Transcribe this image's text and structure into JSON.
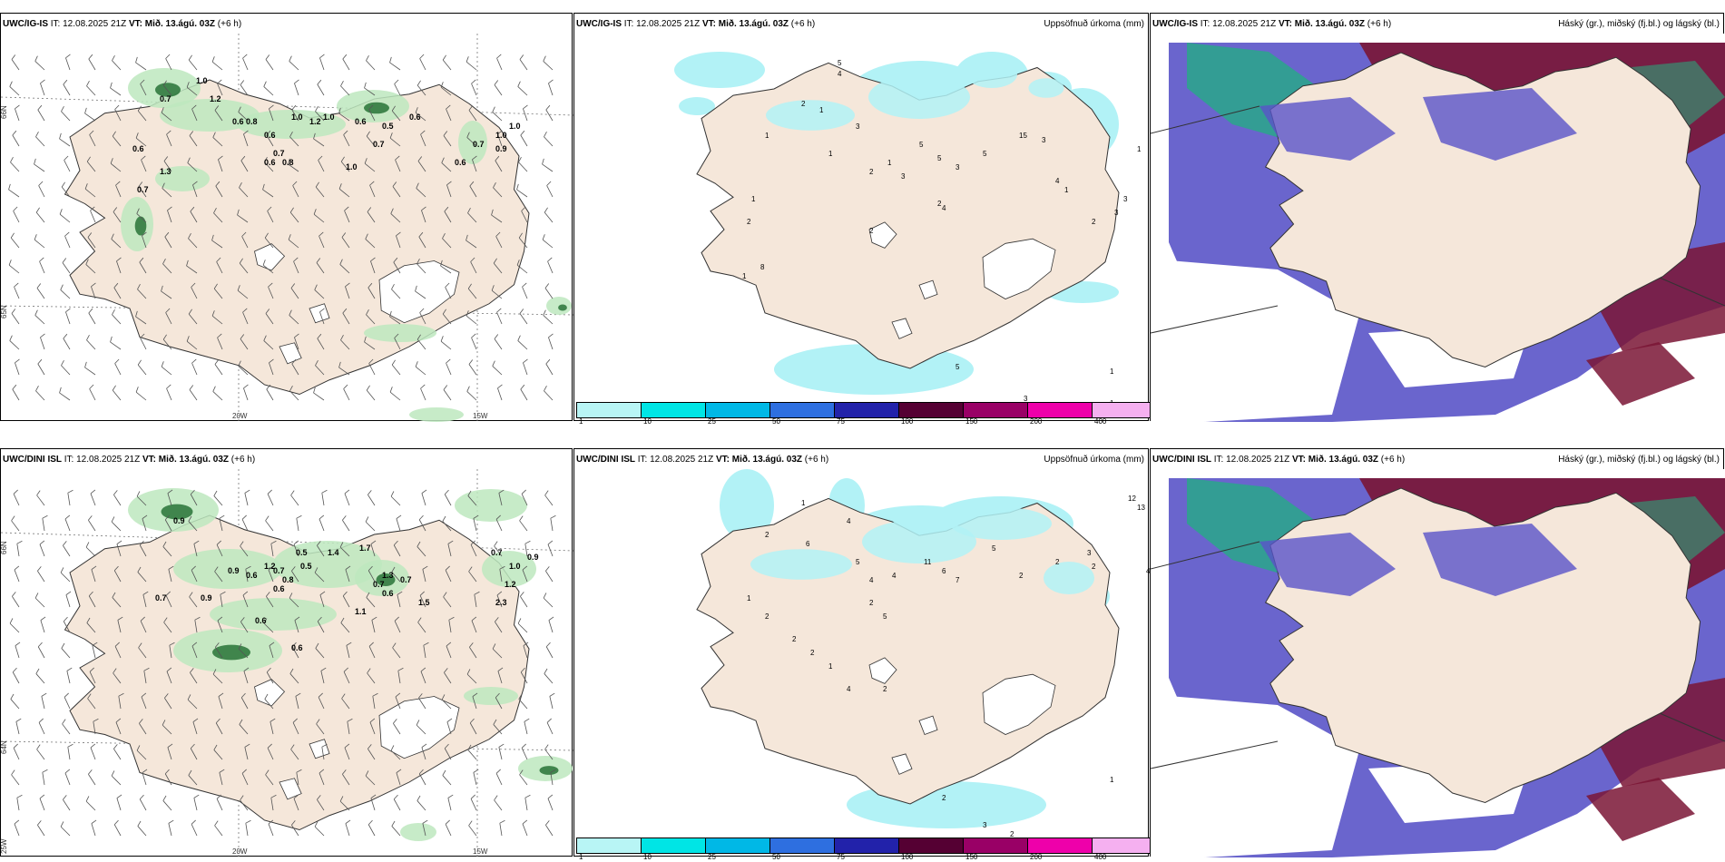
{
  "rows": [
    {
      "wind": {
        "model": "UWC/IG-IS",
        "it": "IT: 12.08.2025 21Z",
        "vt": "VT: Mið. 13.ágú. 03Z",
        "lead": "(+6 h)",
        "values": [
          {
            "t": "0.7"
          },
          {
            "t": "1.0"
          },
          {
            "t": "1.2"
          },
          {
            "t": "0.6"
          },
          {
            "t": "0.8"
          },
          {
            "t": "0.6"
          },
          {
            "t": "0.7"
          },
          {
            "t": "0.8"
          },
          {
            "t": "0.6"
          },
          {
            "t": "1.0"
          },
          {
            "t": "1.2"
          },
          {
            "t": "1.0"
          },
          {
            "t": "0.6"
          },
          {
            "t": "0.7"
          },
          {
            "t": "0.5"
          },
          {
            "t": "0.6"
          },
          {
            "t": "1.0"
          },
          {
            "t": "0.6"
          },
          {
            "t": "0.7"
          },
          {
            "t": "1.0"
          },
          {
            "t": "1.0"
          },
          {
            "t": "0.9"
          },
          {
            "t": "0.6"
          },
          {
            "t": "1.3"
          },
          {
            "t": "0.7"
          }
        ]
      },
      "precip": {
        "model": "UWC/IG-IS",
        "it": "IT: 12.08.2025 21Z",
        "vt": "VT: Mið. 13.ágú. 03Z",
        "lead": "(+6 h)",
        "label": "Uppsöfnuð úrkoma (mm)",
        "values": [
          "5",
          "4",
          "2",
          "1",
          "3",
          "1",
          "2",
          "1",
          "3",
          "5",
          "5",
          "3",
          "5",
          "15",
          "3",
          "4",
          "1",
          "2",
          "3",
          "3",
          "1",
          "1",
          "2",
          "1",
          "2",
          "1",
          "1",
          "2",
          "8",
          "1",
          "2",
          "2",
          "4",
          "5",
          "3",
          "1",
          "1",
          "2",
          "1"
        ]
      },
      "cloud": {
        "model": "UWC/IG-IS",
        "it": "IT: 12.08.2025 21Z",
        "vt": "VT: Mið. 13.ágú. 03Z",
        "lead": "(+6 h)",
        "label": "Háský (gr.), miðský (fj.bl.) og lágský (bl.)"
      }
    },
    {
      "wind": {
        "model": "UWC/DINI ISL",
        "it": "IT: 12.08.2025 21Z",
        "vt": "VT: Mið. 13.ágú. 03Z",
        "lead": "(+6 h)",
        "values": [
          {
            "t": "0.9"
          },
          {
            "t": "0.7"
          },
          {
            "t": "0.9"
          },
          {
            "t": "0.9"
          },
          {
            "t": "0.6"
          },
          {
            "t": "1.2"
          },
          {
            "t": "0.7"
          },
          {
            "t": "0.8"
          },
          {
            "t": "0.6"
          },
          {
            "t": "0.5"
          },
          {
            "t": "0.6"
          },
          {
            "t": "0.5"
          },
          {
            "t": "1.4"
          },
          {
            "t": "1.7"
          },
          {
            "t": "0.7"
          },
          {
            "t": "1.3"
          },
          {
            "t": "0.6"
          },
          {
            "t": "1.5"
          },
          {
            "t": "0.7"
          },
          {
            "t": "0.7"
          },
          {
            "t": "1.0"
          },
          {
            "t": "0.9"
          },
          {
            "t": "2.3"
          },
          {
            "t": "1.2"
          },
          {
            "t": "0.6"
          },
          {
            "t": "1.1"
          }
        ]
      },
      "precip": {
        "model": "UWC/DINI ISL",
        "it": "IT: 12.08.2025 21Z",
        "vt": "VT: Mið. 13.ágú. 03Z",
        "lead": "(+6 h)",
        "label": "Uppsöfnuð úrkoma (mm)",
        "values": [
          "1",
          "4",
          "12",
          "13",
          "2",
          "7",
          "2",
          "6",
          "5",
          "4",
          "4",
          "11",
          "6",
          "7",
          "5",
          "2",
          "2",
          "3",
          "2",
          "4",
          "2",
          "2",
          "1",
          "2",
          "5",
          "1",
          "2",
          "2",
          "2",
          "1",
          "4",
          "2",
          "2",
          "3",
          "2",
          "1"
        ]
      },
      "cloud": {
        "model": "UWC/DINI ISL",
        "it": "IT: 12.08.2025 21Z",
        "vt": "VT: Mið. 13.ágú. 03Z",
        "lead": "(+6 h)",
        "label": "Háský (gr.), miðský (fj.bl.) og lágský (bl.)"
      }
    }
  ],
  "axes": {
    "lat_n": "66N",
    "lat_s": "64N",
    "lat_s2": "65N",
    "lon_w": "20W",
    "lon_e": "15W",
    "lon_far": "25W"
  },
  "scale": {
    "ticks": [
      "1",
      "10",
      "25",
      "50",
      "75",
      "100",
      "150",
      "200",
      "400"
    ],
    "colors": [
      "#b8f5f5",
      "#00e5e5",
      "#00b8e6",
      "#2e6fe0",
      "#2222aa",
      "#550033",
      "#990066",
      "#ee00aa",
      "#f5b0f0"
    ]
  },
  "colors": {
    "land": "#f5e7da",
    "precip": "#b2f2f6",
    "green": "#bde8be",
    "dgreen": "#1e6b2e",
    "blue": "#5a54c8",
    "maroon": "#7a1535",
    "teal": "#22b080"
  }
}
